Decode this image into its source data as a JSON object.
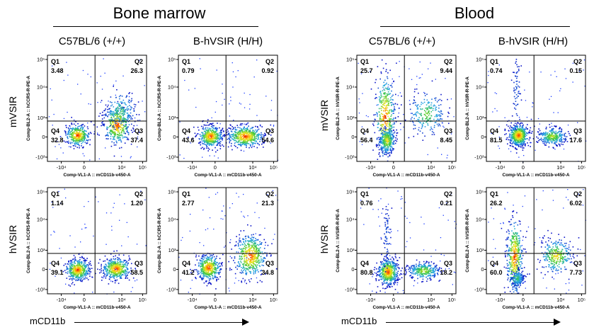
{
  "sections": [
    {
      "title": "Bone marrow",
      "columns": [
        "C57BL/6 (+/+)",
        "B-hVSIR (H/H)"
      ]
    },
    {
      "title": "Blood",
      "columns": [
        "C57BL/6 (+/+)",
        "B-hVSIR (H/H)"
      ]
    }
  ],
  "row_labels": [
    "mVSIR",
    "hVSIR"
  ],
  "x_axis_title": "mCD11b",
  "chart_data": [
    {
      "type": "scatter",
      "tissue": "Bone marrow",
      "strain": "C57BL/6 (+/+)",
      "marker": "mVSIR",
      "xlabel": "Comp-VL1-A :: mCD11b-v450-A",
      "ylabel": "Comp-BL2-A :: hCCR5-R-PE-A",
      "x_ticks": [
        "-10⁴",
        "0",
        "10⁴",
        "10⁵"
      ],
      "y_ticks": [
        "10⁵",
        "10⁴",
        "10³",
        "0",
        "-10³"
      ],
      "quadrants": {
        "Q1": "3.48",
        "Q2": "26.3",
        "Q3": "37.4",
        "Q4": "32.8"
      }
    },
    {
      "type": "scatter",
      "tissue": "Bone marrow",
      "strain": "B-hVSIR (H/H)",
      "marker": "mVSIR",
      "xlabel": "Comp-VL1-A :: mCD11b-v450-A",
      "ylabel": "Comp-BL2-A :: hCCR5-R-PE-A",
      "x_ticks": [
        "-10⁴",
        "0",
        "10⁴",
        "10⁵"
      ],
      "y_ticks": [
        "10⁵",
        "10⁴",
        "10³",
        "0",
        "-10³"
      ],
      "quadrants": {
        "Q1": "0.79",
        "Q2": "0.92",
        "Q3": "54.6",
        "Q4": "43.6"
      }
    },
    {
      "type": "scatter",
      "tissue": "Blood",
      "strain": "C57BL/6 (+/+)",
      "marker": "mVSIR",
      "xlabel": "Comp-VL1-A :: mCD11b-v450-A",
      "ylabel": "Comp-BL2-A :: hVSIR-R-PE-A",
      "x_ticks": [
        "-10⁴",
        "0",
        "10⁴",
        "10⁵"
      ],
      "y_ticks": [
        "10⁵",
        "10⁴",
        "10³",
        "0",
        "-10³"
      ],
      "quadrants": {
        "Q1": "25.7",
        "Q2": "9.44",
        "Q3": "8.45",
        "Q4": "56.4"
      }
    },
    {
      "type": "scatter",
      "tissue": "Blood",
      "strain": "B-hVSIR (H/H)",
      "marker": "mVSIR",
      "xlabel": "Comp-VL1-A :: mCD11b-v450-A",
      "ylabel": "Comp-BL2-A :: hVSIR-R-PE-A",
      "x_ticks": [
        "-10⁴",
        "0",
        "10⁴",
        "10⁵"
      ],
      "y_ticks": [
        "10⁵",
        "10⁴",
        "10³",
        "0",
        "-10³"
      ],
      "quadrants": {
        "Q1": "0.74",
        "Q2": "0.15",
        "Q3": "17.6",
        "Q4": "81.5"
      }
    },
    {
      "type": "scatter",
      "tissue": "Bone marrow",
      "strain": "C57BL/6 (+/+)",
      "marker": "hVSIR",
      "xlabel": "Comp-VL1-A :: mCD11b-v450-A",
      "ylabel": "Comp-BL2-A :: hCCR5-R-PE-A",
      "x_ticks": [
        "-10⁴",
        "0",
        "10⁴",
        "10⁵"
      ],
      "y_ticks": [
        "10⁵",
        "10⁴",
        "10³",
        "0",
        "-10³"
      ],
      "quadrants": {
        "Q1": "1.14",
        "Q2": "1.20",
        "Q3": "58.5",
        "Q4": "39.1"
      }
    },
    {
      "type": "scatter",
      "tissue": "Bone marrow",
      "strain": "B-hVSIR (H/H)",
      "marker": "hVSIR",
      "xlabel": "Comp-VL1-A :: mCD11b-v450-A",
      "ylabel": "Comp-BL2-A :: hCCR5-R-PE-A",
      "x_ticks": [
        "-10⁴",
        "0",
        "10⁴",
        "10⁵"
      ],
      "y_ticks": [
        "10⁵",
        "10⁴",
        "10³",
        "0",
        "-10³"
      ],
      "quadrants": {
        "Q1": "2.77",
        "Q2": "21.3",
        "Q3": "34.8",
        "Q4": "41.2"
      }
    },
    {
      "type": "scatter",
      "tissue": "Blood",
      "strain": "C57BL/6 (+/+)",
      "marker": "hVSIR",
      "xlabel": "Comp-VL1-A :: mCD11b-v450-A",
      "ylabel": "Comp-BL2-A :: hVSIR-R-PE-A",
      "x_ticks": [
        "-10⁴",
        "0",
        "10⁴",
        "10⁵"
      ],
      "y_ticks": [
        "10⁵",
        "10⁴",
        "10³",
        "0",
        "-10³"
      ],
      "quadrants": {
        "Q1": "0.76",
        "Q2": "0.21",
        "Q3": "18.2",
        "Q4": "80.8"
      }
    },
    {
      "type": "scatter",
      "tissue": "Blood",
      "strain": "B-hVSIR (H/H)",
      "marker": "hVSIR",
      "xlabel": "Comp-VL1-A :: mCD11b-v450-A",
      "ylabel": "Comp-BL2-A :: hVSIR-R-PE-A",
      "x_ticks": [
        "-10⁴",
        "0",
        "10⁴",
        "10⁵"
      ],
      "y_ticks": [
        "10⁵",
        "10⁴",
        "10³",
        "0",
        "-10³"
      ],
      "quadrants": {
        "Q1": "26.2",
        "Q2": "6.02",
        "Q3": "7.73",
        "Q4": "60.0"
      }
    }
  ]
}
